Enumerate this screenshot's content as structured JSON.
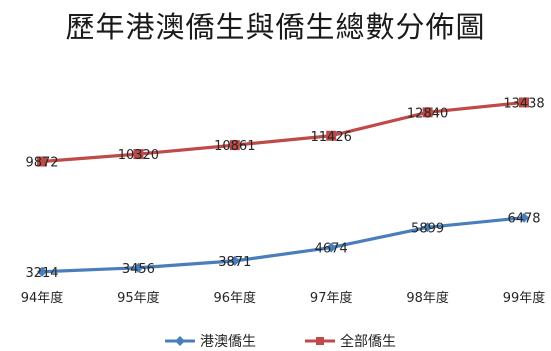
{
  "chart_data": {
    "type": "line",
    "title": "歷年港澳僑生與僑生總數分佈圖",
    "xlabel": "",
    "ylabel": "",
    "categories": [
      "94年度",
      "95年度",
      "96年度",
      "97年度",
      "98年度",
      "99年度"
    ],
    "series": [
      {
        "name": "港澳僑生",
        "values": [
          3214,
          3456,
          3871,
          4674,
          5899,
          6478
        ],
        "color": "#4a7ebb",
        "marker": "diamond"
      },
      {
        "name": "全部僑生",
        "values": [
          9872,
          10320,
          10861,
          11426,
          12840,
          13438
        ],
        "color": "#be4b48",
        "marker": "square"
      }
    ],
    "ylim": [
      0,
      16000
    ],
    "grid": false,
    "legend": "bottom"
  }
}
